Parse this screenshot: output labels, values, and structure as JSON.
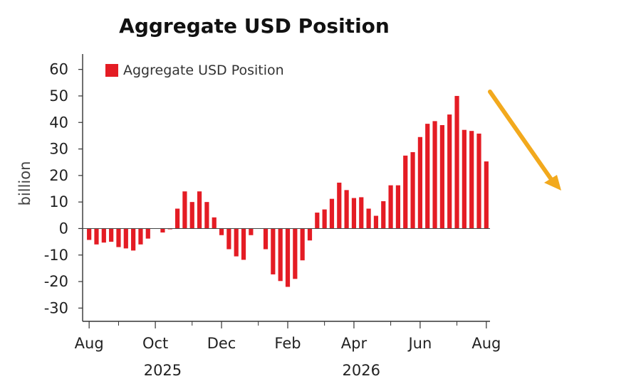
{
  "chart_data": {
    "type": "bar",
    "title": "Aggregate USD Position",
    "ylabel": "billion",
    "xlabel": "",
    "ylim": [
      -35,
      65
    ],
    "yticks": [
      60,
      50,
      40,
      30,
      20,
      10,
      0,
      -10,
      -20,
      -30
    ],
    "grid": false,
    "legend_position": "top-left",
    "series": [
      {
        "name": "Aggregate USD Position",
        "color": "#e41c24",
        "values": [
          -4.3,
          -6,
          -5.3,
          -5,
          -7,
          -7.5,
          -8.3,
          -6,
          -3.8,
          0,
          -1.5,
          -0.3,
          7.5,
          14,
          10,
          14,
          10,
          4.2,
          -2.5,
          -7.8,
          -10.5,
          -11.8,
          -2.5,
          0,
          -7.8,
          -17.3,
          -19.8,
          -22,
          -19,
          -12,
          -4.5,
          6,
          7.2,
          11.2,
          17.3,
          14.5,
          11.5,
          11.8,
          7.5,
          4.8,
          10.3,
          16.3,
          16.3,
          27.5,
          28.8,
          34.5,
          39.5,
          40.5,
          39,
          43,
          50,
          37.2,
          36.8,
          35.8,
          25.3
        ]
      }
    ],
    "x_axis": {
      "month_labels": [
        {
          "label": "Aug",
          "index": 0
        },
        {
          "label": "Oct",
          "index": 9
        },
        {
          "label": "Dec",
          "index": 18
        },
        {
          "label": "Feb",
          "index": 27
        },
        {
          "label": "Apr",
          "index": 36
        },
        {
          "label": "Jun",
          "index": 45
        },
        {
          "label": "Aug",
          "index": 54
        }
      ],
      "year_labels": [
        {
          "label": "2025",
          "index": 10
        },
        {
          "label": "2026",
          "index": 37
        }
      ],
      "minor_tick_indices": [
        4,
        14,
        23,
        32,
        41,
        50
      ]
    },
    "annotation": {
      "type": "arrow",
      "direction": "down-right",
      "color": "#f2a91d"
    }
  }
}
